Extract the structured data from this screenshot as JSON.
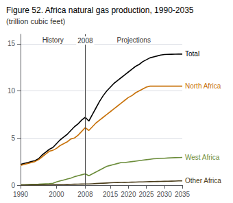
{
  "chart_data": {
    "type": "line",
    "title": "Figure 52. Africa natural gas production, 1990-2035",
    "subtitle": "(trillion cubic feet)",
    "x": [
      1990,
      1991,
      1992,
      1993,
      1994,
      1995,
      1996,
      1997,
      1998,
      1999,
      2000,
      2001,
      2002,
      2003,
      2004,
      2005,
      2006,
      2007,
      2008,
      2009,
      2010,
      2011,
      2012,
      2013,
      2014,
      2015,
      2016,
      2017,
      2018,
      2019,
      2020,
      2021,
      2022,
      2023,
      2024,
      2025,
      2026,
      2027,
      2028,
      2029,
      2030,
      2031,
      2032,
      2033,
      2034,
      2035
    ],
    "series": [
      {
        "name": "Total",
        "color": "#000000",
        "values": [
          2.2,
          2.3,
          2.4,
          2.5,
          2.6,
          2.8,
          3.2,
          3.5,
          3.8,
          4.0,
          4.4,
          4.8,
          5.1,
          5.4,
          5.8,
          6.2,
          6.5,
          6.9,
          7.2,
          6.8,
          7.5,
          8.2,
          8.9,
          9.5,
          10.0,
          10.4,
          10.8,
          11.1,
          11.4,
          11.7,
          12.0,
          12.3,
          12.6,
          12.8,
          13.1,
          13.3,
          13.5,
          13.6,
          13.7,
          13.8,
          13.85,
          13.87,
          13.88,
          13.89,
          13.9,
          13.9
        ]
      },
      {
        "name": "North Africa",
        "color": "#c8720a",
        "values": [
          2.1,
          2.2,
          2.3,
          2.4,
          2.5,
          2.7,
          3.0,
          3.3,
          3.6,
          3.7,
          3.9,
          4.2,
          4.4,
          4.6,
          4.9,
          5.0,
          5.3,
          5.7,
          6.1,
          5.8,
          6.2,
          6.6,
          6.9,
          7.2,
          7.5,
          7.8,
          8.1,
          8.4,
          8.7,
          9.0,
          9.3,
          9.5,
          9.8,
          10.0,
          10.2,
          10.4,
          10.5,
          10.5,
          10.5,
          10.5,
          10.5,
          10.5,
          10.5,
          10.5,
          10.5,
          10.5
        ]
      },
      {
        "name": "West Africa",
        "color": "#6b8c3a",
        "values": [
          0.05,
          0.06,
          0.07,
          0.08,
          0.09,
          0.1,
          0.12,
          0.14,
          0.16,
          0.2,
          0.35,
          0.45,
          0.55,
          0.65,
          0.75,
          0.9,
          1.0,
          1.1,
          1.2,
          1.0,
          1.2,
          1.4,
          1.6,
          1.8,
          2.0,
          2.1,
          2.2,
          2.3,
          2.4,
          2.4,
          2.45,
          2.5,
          2.55,
          2.6,
          2.65,
          2.7,
          2.75,
          2.8,
          2.82,
          2.84,
          2.86,
          2.88,
          2.9,
          2.92,
          2.93,
          2.94
        ]
      },
      {
        "name": "Other Africa",
        "color": "#4a3c1a",
        "values": [
          0.02,
          0.02,
          0.02,
          0.03,
          0.03,
          0.03,
          0.04,
          0.04,
          0.04,
          0.05,
          0.05,
          0.06,
          0.07,
          0.08,
          0.09,
          0.1,
          0.11,
          0.12,
          0.13,
          0.13,
          0.15,
          0.17,
          0.19,
          0.21,
          0.23,
          0.25,
          0.27,
          0.28,
          0.29,
          0.3,
          0.31,
          0.32,
          0.33,
          0.34,
          0.35,
          0.36,
          0.37,
          0.38,
          0.39,
          0.4,
          0.41,
          0.42,
          0.43,
          0.44,
          0.45,
          0.46
        ]
      }
    ],
    "xlim": [
      1990,
      2035
    ],
    "ylim": [
      0,
      16
    ],
    "xticks": [
      1990,
      2000,
      2008,
      2015,
      2020,
      2025,
      2030,
      2035
    ],
    "yticks": [
      0,
      5,
      10,
      15
    ],
    "grid": true,
    "vline": {
      "x": 2008,
      "color": "#444444"
    },
    "annotations": [
      "History",
      "2008",
      "Projections"
    ]
  }
}
